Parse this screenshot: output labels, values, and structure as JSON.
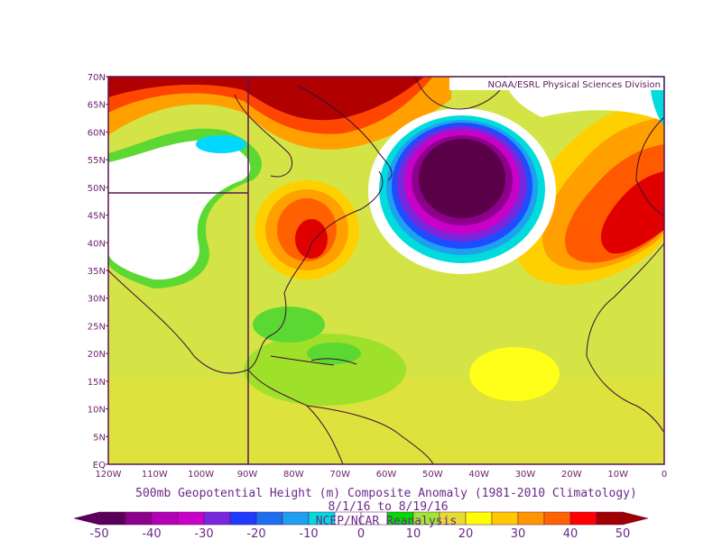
{
  "credit": "NOAA/ESRL Physical Sciences Division",
  "caption": {
    "line1": "500mb Geopotential Height (m) Composite Anomaly (1981-2010 Climatology)",
    "line2": "8/1/16  to 8/19/16",
    "line3": "NCEP/NCAR Reanalysis"
  },
  "lat_labels": [
    "70N",
    "65N",
    "60N",
    "55N",
    "50N",
    "45N",
    "40N",
    "35N",
    "30N",
    "25N",
    "20N",
    "15N",
    "10N",
    "5N",
    "EQ"
  ],
  "lon_labels": [
    "120W",
    "110W",
    "100W",
    "90W",
    "80W",
    "70W",
    "60W",
    "50W",
    "40W",
    "30W",
    "20W",
    "10W",
    "0"
  ],
  "colorbar": {
    "labels": [
      "-50",
      "-40",
      "-30",
      "-20",
      "-10",
      "0",
      "10",
      "20",
      "30",
      "40",
      "50"
    ],
    "colors": [
      "#5a005a",
      "#8c008c",
      "#b400b4",
      "#c800c8",
      "#7828dc",
      "#1e3cff",
      "#1e6ef0",
      "#1ea0f0",
      "#00dcdc",
      "#ffffff",
      "#ffffff",
      "#00dc00",
      "#a0e632",
      "#e6dc32",
      "#ffff00",
      "#ffc800",
      "#ff9600",
      "#ff6400",
      "#ff0000",
      "#a00000"
    ]
  },
  "colors": {
    "border": "#5a145a",
    "coast": "#3a0a3a",
    "background_field": "#d4e446"
  }
}
